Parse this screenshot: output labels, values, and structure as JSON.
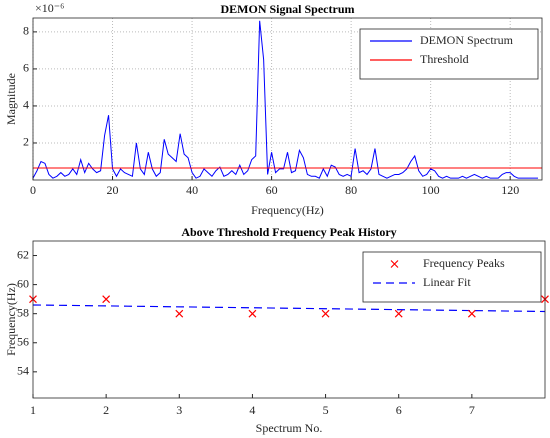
{
  "chart_data": [
    {
      "type": "line",
      "title": "DEMON Signal Spectrum",
      "xlabel": "Frequency(Hz)",
      "ylabel": "Magnitude",
      "y_multiplier": "×10⁻⁶",
      "x": [
        0,
        1,
        2,
        3,
        4,
        5,
        6,
        7,
        8,
        9,
        10,
        11,
        12,
        13,
        14,
        15,
        16,
        17,
        18,
        19,
        20,
        21,
        22,
        23,
        24,
        25,
        26,
        27,
        28,
        29,
        30,
        31,
        32,
        33,
        34,
        35,
        36,
        37,
        38,
        39,
        40,
        41,
        42,
        43,
        44,
        45,
        46,
        47,
        48,
        49,
        50,
        51,
        52,
        53,
        54,
        55,
        56,
        57,
        58,
        59,
        60,
        61,
        62,
        63,
        64,
        65,
        66,
        67,
        68,
        69,
        70,
        71,
        72,
        73,
        74,
        75,
        76,
        77,
        78,
        79,
        80,
        81,
        82,
        83,
        84,
        85,
        86,
        87,
        88,
        89,
        90,
        91,
        92,
        93,
        94,
        95,
        96,
        97,
        98,
        99,
        100,
        101,
        102,
        103,
        104,
        105,
        106,
        107,
        108,
        109,
        110,
        111,
        112,
        113,
        114,
        115,
        116,
        117,
        118,
        119,
        120,
        121,
        122,
        123,
        124,
        125,
        126,
        127
      ],
      "series": [
        {
          "name": "DEMON Spectrum",
          "color": "#0000ff",
          "values": [
            0.1,
            0.5,
            1.0,
            0.9,
            0.3,
            0.1,
            0.2,
            0.4,
            0.2,
            0.3,
            0.6,
            0.3,
            1.1,
            0.4,
            0.9,
            0.6,
            0.4,
            0.5,
            2.4,
            3.5,
            0.6,
            0.2,
            0.6,
            0.4,
            0.3,
            0.2,
            2.0,
            0.6,
            0.3,
            1.5,
            0.6,
            0.2,
            0.4,
            2.2,
            1.4,
            1.2,
            1.0,
            2.5,
            1.4,
            1.2,
            0.4,
            0.1,
            0.2,
            0.6,
            0.4,
            0.2,
            0.5,
            0.7,
            0.2,
            0.3,
            0.5,
            0.3,
            0.8,
            0.3,
            0.5,
            1.1,
            1.3,
            8.6,
            6.5,
            0.3,
            1.5,
            0.4,
            0.6,
            0.6,
            1.5,
            0.4,
            0.5,
            1.6,
            1.2,
            0.3,
            0.2,
            0.2,
            0.1,
            0.6,
            0.2,
            0.8,
            0.7,
            0.3,
            0.2,
            0.3,
            0.2,
            1.7,
            0.4,
            0.5,
            0.3,
            0.6,
            1.7,
            0.3,
            0.2,
            0.1,
            0.2,
            0.3,
            0.3,
            0.4,
            0.6,
            1.0,
            1.3,
            0.5,
            0.2,
            0.3,
            0.6,
            0.5,
            0.2,
            0.1,
            0.2,
            0.1,
            0.1,
            0.1,
            0.2,
            0.1,
            0.2,
            0.3,
            0.2,
            0.1,
            0.2,
            0.1,
            0.1,
            0.1,
            0.3,
            0.4,
            0.4,
            0.2,
            0.1,
            0.1,
            0.1,
            0.1,
            0.1,
            0.1
          ]
        },
        {
          "name": "Threshold",
          "color": "#ff0000",
          "x": [
            0,
            128
          ],
          "values": [
            0.65,
            0.65
          ]
        }
      ],
      "xlim": [
        0,
        128
      ],
      "xticks": [
        0,
        20,
        40,
        60,
        80,
        100,
        120
      ],
      "ylim": [
        0,
        8.75
      ],
      "yticks": [
        2,
        4,
        6,
        8
      ],
      "grid": true,
      "legend": "upper right"
    },
    {
      "type": "scatter",
      "title": "Above Threshold Frequency Peak History",
      "xlabel": "Spectrum No.",
      "ylabel": "Frequency(Hz)",
      "series": [
        {
          "name": "Frequency Peaks",
          "color": "#ff0000",
          "marker": "x",
          "x": [
            1,
            2,
            3,
            4,
            5,
            6,
            7,
            8
          ],
          "values": [
            59,
            59,
            58,
            58,
            58,
            58,
            58,
            59
          ]
        },
        {
          "name": "Linear Fit",
          "color": "#0000ff",
          "linestyle": "dashed",
          "x": [
            1,
            8
          ],
          "values": [
            58.6,
            58.15
          ]
        }
      ],
      "xlim": [
        1,
        8
      ],
      "xticks": [
        1,
        2,
        3,
        4,
        5,
        6,
        7
      ],
      "ylim": [
        52.2,
        63
      ],
      "yticks": [
        54,
        56,
        58,
        60,
        62
      ],
      "grid": false,
      "legend": "upper right"
    }
  ]
}
